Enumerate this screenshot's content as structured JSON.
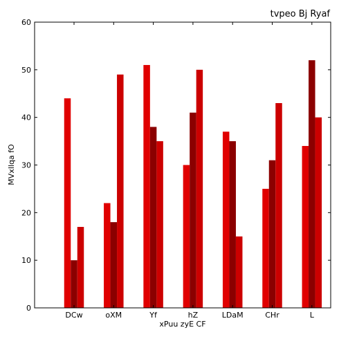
{
  "chart_data": {
    "type": "bar",
    "title": "tvpeo  Bj Ryaf",
    "xlabel": "xPuu zyE CF",
    "ylabel": "MVxllqa fO",
    "categories": [
      "DCw",
      "oXM",
      "Yf",
      "hZ",
      "LDaM",
      "CHr",
      "L"
    ],
    "ylim": [
      0,
      60
    ],
    "yticks": [
      0,
      10,
      20,
      30,
      40,
      50,
      60
    ],
    "grid": false,
    "series": [
      {
        "color": "#e00000",
        "values": [
          44,
          22,
          51,
          30,
          37,
          25,
          34
        ]
      },
      {
        "color": "#8b0000",
        "values": [
          10,
          18,
          38,
          41,
          35,
          31,
          52
        ]
      },
      {
        "color": "#cc0000",
        "values": [
          17,
          49,
          35,
          50,
          15,
          43,
          40
        ]
      }
    ]
  }
}
